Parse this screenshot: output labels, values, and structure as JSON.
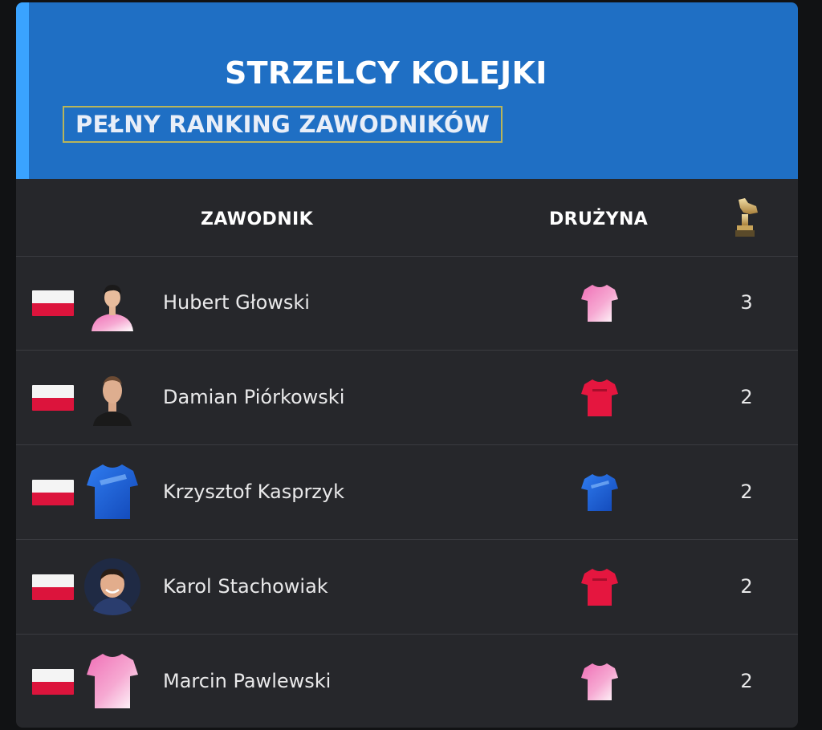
{
  "header": {
    "title": "STRZELCY KOLEJKI",
    "subtitle": "PEŁNY RANKING ZAWODNIKÓW"
  },
  "columns": {
    "player": "ZAWODNIK",
    "team": "DRUŻYNA",
    "goals_icon": "golden-boot-trophy-icon"
  },
  "colors": {
    "header_bg": "#1f6fc4",
    "header_accent": "#3aa3ff",
    "card_bg": "#26272b",
    "subtitle_border": "#b8b55a"
  },
  "players": [
    {
      "name": "Hubert Głowski",
      "goals": "3",
      "flag": "poland-flag-icon",
      "avatar": "player-photo-pink-kit",
      "team_jersey": "pink-white-jersey-icon"
    },
    {
      "name": "Damian Piórkowski",
      "goals": "2",
      "flag": "poland-flag-icon",
      "avatar": "player-photo",
      "team_jersey": "red-jersey-icon"
    },
    {
      "name": "Krzysztof Kasprzyk",
      "goals": "2",
      "flag": "poland-flag-icon",
      "avatar": "blue-jersey-icon",
      "team_jersey": "blue-jersey-icon"
    },
    {
      "name": "Karol Stachowiak",
      "goals": "2",
      "flag": "poland-flag-icon",
      "avatar": "player-photo-round",
      "team_jersey": "red-jersey-icon"
    },
    {
      "name": "Marcin Pawlewski",
      "goals": "2",
      "flag": "poland-flag-icon",
      "avatar": "pink-white-jersey-icon",
      "team_jersey": "pink-white-jersey-icon"
    }
  ]
}
